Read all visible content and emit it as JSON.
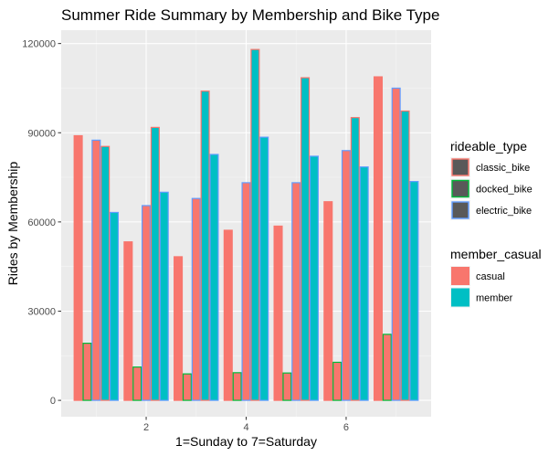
{
  "chart_data": {
    "type": "bar",
    "title": "Summer Ride Summary by Membership and Bike Type",
    "xlabel": "1=Sunday to 7=Saturday",
    "ylabel": "Rides by Membership",
    "x": [
      1,
      2,
      3,
      4,
      5,
      6,
      7
    ],
    "x_ticks": [
      2,
      4,
      6
    ],
    "xlim": [
      0.3,
      7.7
    ],
    "ylim": [
      -5500,
      124500
    ],
    "y_ticks": [
      0,
      30000,
      60000,
      90000,
      120000
    ],
    "grid": true,
    "legend_position": "right",
    "fill_legend": {
      "title": "member_casual",
      "entries": [
        {
          "name": "casual",
          "color": "#F8766D"
        },
        {
          "name": "member",
          "color": "#00BFC4"
        }
      ]
    },
    "outline_legend": {
      "title": "rideable_type",
      "entries": [
        {
          "name": "classic_bike",
          "color": "#F8766D"
        },
        {
          "name": "docked_bike",
          "color": "#00BA38"
        },
        {
          "name": "electric_bike",
          "color": "#619CFF"
        }
      ]
    },
    "series": [
      {
        "member_casual": "casual",
        "rideable_type": "classic_bike",
        "values": [
          89000,
          53300,
          48300,
          57200,
          58600,
          66800,
          108800
        ]
      },
      {
        "member_casual": "casual",
        "rideable_type": "docked_bike",
        "values": [
          19200,
          11200,
          8900,
          9300,
          9200,
          12800,
          22200
        ]
      },
      {
        "member_casual": "casual",
        "rideable_type": "electric_bike",
        "values": [
          87500,
          65500,
          67900,
          73200,
          73200,
          84000,
          105000
        ]
      },
      {
        "member_casual": "member",
        "rideable_type": "classic_bike",
        "values": [
          85400,
          91800,
          104000,
          118000,
          108500,
          95100,
          97300
        ]
      },
      {
        "member_casual": "member",
        "rideable_type": "electric_bike",
        "values": [
          63200,
          70000,
          82700,
          88500,
          82100,
          78500,
          73600
        ]
      }
    ]
  }
}
